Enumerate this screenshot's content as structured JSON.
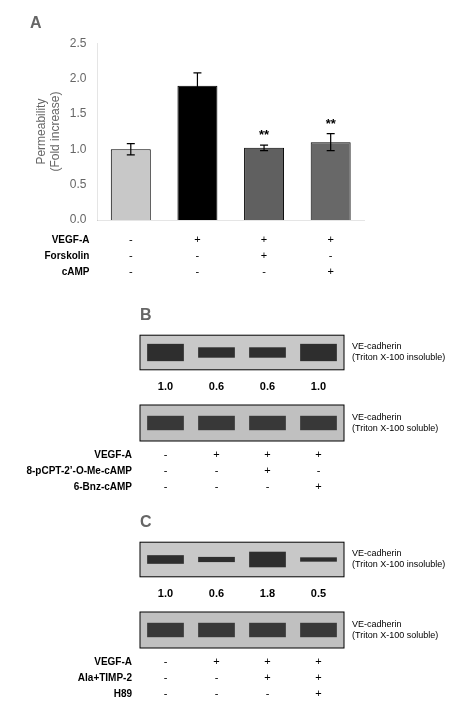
{
  "chart_data": [
    {
      "type": "bar",
      "title": "A",
      "ylabel": "Permeability\n(Fold increase)",
      "categories": [
        null,
        null,
        null,
        null
      ],
      "values": [
        1.0,
        1.9,
        1.02,
        1.1
      ],
      "errors": [
        0.08,
        0.18,
        0.04,
        0.12
      ],
      "colors": [
        "#c8c8c8",
        "#000000",
        "#606060",
        "#686868"
      ],
      "annotations": [
        null,
        null,
        "**",
        "**"
      ],
      "ylim": [
        0,
        2.5
      ],
      "yticks": [
        {
          "value": 0,
          "label": "0.0"
        },
        0.5,
        {
          "value": 1,
          "label": "1.0"
        },
        1.5,
        {
          "value": 2,
          "label": "2.0"
        },
        2.5
      ],
      "grid": false,
      "tick_labels": "y",
      "table": [
        {
          "label": "VEGF-A",
          "values": [
            "-",
            "+",
            "+",
            "+"
          ]
        },
        {
          "label": "Forskolin",
          "values": [
            "-",
            "-",
            "+",
            "-"
          ]
        },
        {
          "label": "cAMP",
          "values": [
            "-",
            "-",
            "-",
            "+"
          ]
        }
      ]
    },
    {
      "type": "blot",
      "title": "B",
      "series": [
        {
          "name": "VE-cadherin\n(Triton X-100 insoluble)",
          "values": [
            1.0,
            0.6,
            0.6,
            1.0
          ],
          "value_labels": [
            "1.0",
            "0.6",
            "0.6",
            "1.0"
          ]
        },
        {
          "name": "VE-cadherin\n(Triton X-100 soluble)"
        }
      ],
      "data_labels": true,
      "table": [
        {
          "label": "VEGF-A",
          "values": [
            "-",
            "+",
            "+",
            "+"
          ]
        },
        {
          "label": "8-pCPT-2’-O-Me-cAMP",
          "values": [
            "-",
            "-",
            "+",
            "-"
          ]
        },
        {
          "label": "6-Bnz-cAMP",
          "values": [
            "-",
            "-",
            "-",
            "+"
          ]
        }
      ]
    },
    {
      "type": "blot",
      "title": "C",
      "series": [
        {
          "name": "VE-cadherin\n(Triton X-100 insoluble)",
          "values": [
            1.0,
            0.6,
            1.8,
            0.5
          ],
          "value_labels": [
            "1.0",
            "0.6",
            "1.8",
            "0.5"
          ]
        },
        {
          "name": "VE-cadherin\n(Triton X-100 soluble)"
        }
      ],
      "data_labels": true,
      "table": [
        {
          "label": "VEGF-A",
          "values": [
            "-",
            "+",
            "+",
            "+"
          ]
        },
        {
          "label": "Ala+TIMP-2",
          "values": [
            "-",
            "-",
            "+",
            "+"
          ]
        },
        {
          "label": "H89",
          "values": [
            "-",
            "-",
            "-",
            "+"
          ]
        }
      ]
    }
  ]
}
